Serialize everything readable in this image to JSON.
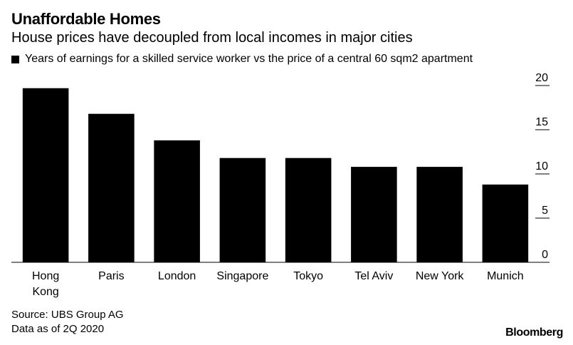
{
  "header": {
    "title": "Unaffordable Homes",
    "subtitle": "House prices have decoupled from local incomes in major cities"
  },
  "legend": {
    "label": "Years of earnings for a skilled service worker vs the price of a central 60 sqm2 apartment"
  },
  "chart_data": {
    "type": "bar",
    "title": "Unaffordable Homes",
    "series_name": "Years of earnings for a skilled service worker vs the price of a central 60 sqm2 apartment",
    "categories": [
      "Hong Kong",
      "Paris",
      "London",
      "Singapore",
      "Tokyo",
      "Tel Aviv",
      "New York",
      "Munich"
    ],
    "category_lines": [
      [
        "Hong",
        "Kong"
      ],
      [
        "Paris"
      ],
      [
        "London"
      ],
      [
        "Singapore"
      ],
      [
        "Tokyo"
      ],
      [
        "Tel Aviv"
      ],
      [
        "New York"
      ],
      [
        "Munich"
      ]
    ],
    "values": [
      19.7,
      16.8,
      13.8,
      11.8,
      11.8,
      10.8,
      10.8,
      8.8
    ],
    "ylim": [
      0,
      20
    ],
    "yticks": [
      0,
      5,
      10,
      15,
      20
    ],
    "yaxis_position": "right",
    "bar_color": "#000000",
    "xlabel": "",
    "ylabel": ""
  },
  "footer": {
    "source": "Source: UBS Group AG",
    "note": "Data as of 2Q 2020",
    "brand": "Bloomberg"
  }
}
